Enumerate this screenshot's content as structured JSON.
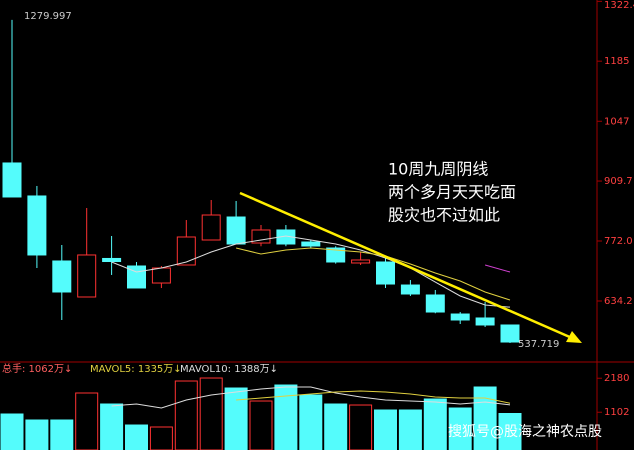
{
  "chart_data": {
    "type": "candlestick",
    "open": [
      951.2,
      875.4,
      726.1,
      643.4,
      731.9,
      714.6,
      675.5,
      716.9,
      774.3,
      827.1,
      767.4,
      797.3,
      769.7,
      755.9,
      721.5,
      723.8,
      670.9,
      648,
      604.3,
      595.2,
      579.1
    ],
    "high": [
      1279.997,
      898.4,
      762.8,
      847.8,
      783.5,
      723.8,
      714.6,
      820.2,
      866.2,
      863.9,
      808.7,
      808.7,
      774,
      760,
      746.8,
      735.3,
      682.4,
      659.5,
      608.9,
      631.9,
      579.1
    ],
    "low": [
      873,
      710,
      590.6,
      643,
      694,
      664,
      664,
      716.9,
      774,
      765,
      760,
      760,
      756,
      720,
      716.9,
      664,
      645.7,
      606,
      581.4,
      574.5,
      537.719
    ],
    "close": [
      873.1,
      739.9,
      654.9,
      739.9,
      724.9,
      664.1,
      710,
      781.2,
      831.7,
      765.1,
      797.3,
      765.1,
      760.5,
      723.8,
      728.4,
      673.2,
      650.3,
      608.9,
      590.6,
      579.1,
      540
    ],
    "up_color": "#ff3232",
    "down_color": "#54fcfc",
    "ylim": [
      498.7,
      1325.5
    ],
    "yticks": [
      634.2,
      {
        "value": 772,
        "label": "772.0"
      },
      909.7,
      1047,
      1185,
      1322.4
    ],
    "lines": [
      {
        "color": "#dddddd",
        "values": [
          null,
          null,
          null,
          null,
          723.8,
          700.8,
          710,
          723.8,
          746.7,
          765.1,
          774.3,
          783.5,
          774.3,
          765.1,
          751.3,
          733,
          710,
          677.8,
          645.7,
          625,
          620
        ]
      },
      {
        "color": "#e0d040",
        "values": [
          null,
          null,
          null,
          null,
          null,
          null,
          null,
          null,
          null,
          755.9,
          742.1,
          751.3,
          755.9,
          751.3,
          746.7,
          737.6,
          719.2,
          698.5,
          680.1,
          654.9,
          636.5
        ]
      },
      {
        "color": "#d040d0",
        "values": [
          null,
          null,
          null,
          null,
          null,
          null,
          null,
          null,
          null,
          null,
          null,
          null,
          null,
          null,
          null,
          null,
          null,
          null,
          null,
          716.9,
          700.8
        ]
      }
    ],
    "annotation": [
      "10周九周阴线",
      "两个多月天天吃面",
      "股灾也不过如此"
    ],
    "volume": [
      1046,
      856,
      856,
      1712,
      1363,
      697,
      634,
      2092,
      2187,
      1870,
      1458,
      1965,
      1648,
      1363,
      1331,
      1173,
      1173,
      1522,
      1236,
      1902,
      1062
    ],
    "volume_lines": [
      {
        "color": "#dddddd",
        "values": [
          null,
          null,
          null,
          null,
          1300,
          1363,
          1236,
          1490,
          1648,
          1743,
          1838,
          1902,
          1902,
          1712,
          1585,
          1490,
          1458,
          1427,
          1363,
          1427,
          1335
        ]
      },
      {
        "color": "#e0d040",
        "values": [
          null,
          null,
          null,
          null,
          null,
          null,
          null,
          null,
          null,
          1490,
          1553,
          1617,
          1680,
          1743,
          1775,
          1743,
          1680,
          1585,
          1553,
          1553,
          1388
        ]
      }
    ],
    "volume_ylim": [
      0,
      2663
    ],
    "volume_yticks": [
      1102,
      2180
    ],
    "volume_legend": [
      "总手: 1062万↓",
      "MAVOL5: 1335万↓",
      "MAVOL10: 1388万↓"
    ],
    "watermark": "搜狐号@股海之神农点股"
  }
}
